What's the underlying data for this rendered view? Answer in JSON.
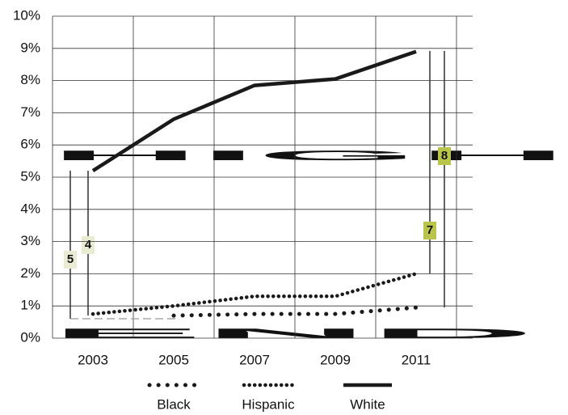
{
  "chart_data": {
    "type": "line",
    "background_text": [
      "HIGH",
      "END"
    ],
    "categories": [
      "2003",
      "2005",
      "2007",
      "2009",
      "2011"
    ],
    "series": [
      {
        "name": "Black",
        "color": "#1a1a1a",
        "style": "dotted-sparse",
        "values": [
          null,
          0.7,
          0.75,
          0.75,
          0.95
        ]
      },
      {
        "name": "Hispanic",
        "color": "#1a1a1a",
        "style": "dotted-dense",
        "values": [
          0.75,
          1.0,
          1.3,
          1.3,
          2.0
        ]
      },
      {
        "name": "White",
        "color": "#1a1a1a",
        "style": "solid",
        "values": [
          5.2,
          6.8,
          7.85,
          8.05,
          8.9
        ]
      }
    ],
    "annotations": [
      "5",
      "4",
      "7",
      "8"
    ],
    "ylim": [
      0,
      10
    ],
    "yticks": [
      {
        "value": 0,
        "label": "0%"
      },
      {
        "value": 1,
        "label": "1%"
      },
      {
        "value": 2,
        "label": "2%"
      },
      {
        "value": 3,
        "label": "3%"
      },
      {
        "value": 4,
        "label": "4%"
      },
      {
        "value": 5,
        "label": "5%"
      },
      {
        "value": 6,
        "label": "6%"
      },
      {
        "value": 7,
        "label": "7%"
      },
      {
        "value": 8,
        "label": "8%"
      },
      {
        "value": 9,
        "label": "9%"
      },
      {
        "value": 10,
        "label": "10%"
      }
    ],
    "grid": true
  }
}
